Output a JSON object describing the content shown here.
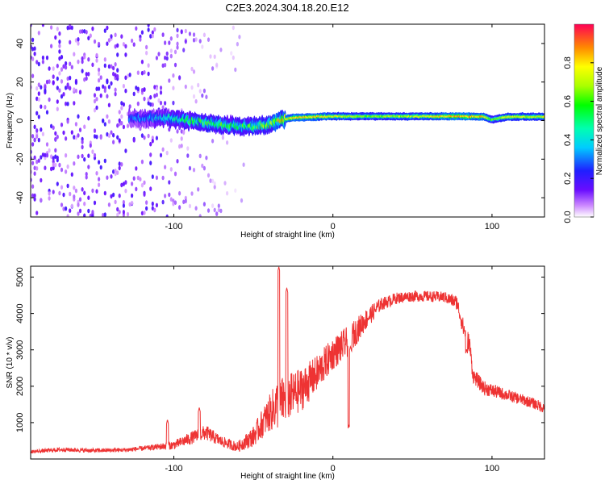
{
  "title": "C2E3.2024.304.18.20.E12",
  "chart_data": [
    {
      "type": "heatmap",
      "xlabel": "Height of straight line (km)",
      "ylabel": "Frequency (Hz)",
      "xlim": [
        -190,
        133
      ],
      "ylim": [
        -50,
        50
      ],
      "xticks": [
        -100,
        0,
        100
      ],
      "xtick_labels": [
        "-100",
        "0",
        "100"
      ],
      "yticks": [
        -40,
        -20,
        0,
        20,
        40
      ],
      "ytick_labels": [
        "-40",
        "-20",
        "0",
        "20",
        "40"
      ],
      "colorbar": {
        "label": "Normalized spectral amplitude",
        "range": [
          0,
          1
        ],
        "ticks": [
          0.0,
          0.2,
          0.4,
          0.6,
          0.8
        ],
        "tick_labels": [
          "0.0",
          "0.2",
          "0.4",
          "0.6",
          "0.8"
        ]
      },
      "ridge": {
        "x": [
          -120,
          -105,
          -90,
          -75,
          -60,
          -50,
          -40,
          -35,
          -25,
          -10,
          0,
          20,
          50,
          80,
          95,
          100,
          110,
          133
        ],
        "freq": [
          1,
          1.5,
          0,
          -2,
          -3,
          -3,
          -2,
          0,
          1.5,
          2,
          2.2,
          2.2,
          2.2,
          2.2,
          2,
          0.5,
          2,
          2
        ],
        "amplitude": [
          0.3,
          0.4,
          0.5,
          0.55,
          0.5,
          0.55,
          0.6,
          0.7,
          0.8,
          0.8,
          0.75,
          0.65,
          0.7,
          0.85,
          0.8,
          0.6,
          0.75,
          0.7
        ]
      },
      "noise_region": {
        "x_range": [
          -190,
          -55
        ],
        "amplitude": 0.15
      }
    },
    {
      "type": "line",
      "xlabel": "Height of straight line (km)",
      "ylabel": "SNR (10 * v/v)",
      "xlim": [
        -190,
        133
      ],
      "ylim": [
        0,
        5300
      ],
      "xticks": [
        -100,
        0,
        100
      ],
      "xtick_labels": [
        "-100",
        "0",
        "100"
      ],
      "yticks": [
        1000,
        2000,
        3000,
        4000,
        5000
      ],
      "ytick_labels": [
        "1000",
        "2000",
        "3000",
        "4000",
        "5000"
      ],
      "series": [
        {
          "name": "SNR",
          "color": "#ee3333",
          "x": [
            -190,
            -170,
            -150,
            -130,
            -115,
            -100,
            -90,
            -80,
            -70,
            -60,
            -50,
            -40,
            -35,
            -30,
            -20,
            -10,
            0,
            10,
            20,
            30,
            40,
            50,
            60,
            70,
            78,
            82,
            86,
            88,
            95,
            110,
            125,
            133
          ],
          "value": [
            200,
            260,
            230,
            250,
            310,
            380,
            560,
            730,
            480,
            330,
            620,
            1250,
            1500,
            1650,
            1900,
            2350,
            2900,
            3250,
            3800,
            4250,
            4420,
            4480,
            4470,
            4450,
            4300,
            3600,
            3150,
            2300,
            1950,
            1750,
            1550,
            1400
          ],
          "noise": [
            50,
            60,
            60,
            60,
            70,
            120,
            170,
            210,
            150,
            140,
            280,
            500,
            700,
            650,
            600,
            500,
            450,
            420,
            300,
            180,
            160,
            150,
            150,
            150,
            200,
            250,
            250,
            200,
            200,
            160,
            150,
            150
          ],
          "spikes": [
            {
              "x": -104,
              "value": 1080
            },
            {
              "x": -84,
              "value": 1420
            },
            {
              "x": -34,
              "value": 5280
            },
            {
              "x": -29,
              "value": 4700
            },
            {
              "x": 10,
              "value": 940
            },
            {
              "x": 11,
              "value": 3100
            },
            {
              "x": 84,
              "value": 3020
            }
          ]
        }
      ]
    }
  ]
}
